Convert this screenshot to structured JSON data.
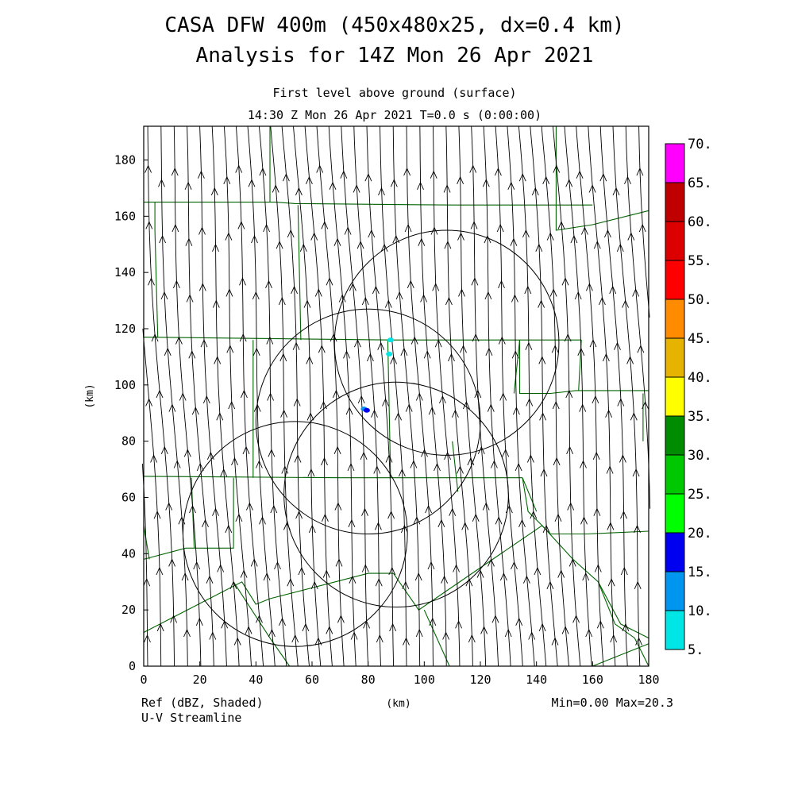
{
  "header": {
    "title_line1": "CASA DFW 400m (450x480x25, dx=0.4 km)",
    "title_line2": "Analysis for 14Z Mon 26 Apr 2021",
    "subtitle_line1": "First level above ground (surface)",
    "subtitle_line2": "14:30 Z Mon 26 Apr 2021    T=0.0 s (0:00:00)"
  },
  "footer": {
    "field_label": "Ref (dBZ, Shaded)",
    "overlay_label": "U-V Streamline",
    "stats": "Min=0.00 Max=20.3"
  },
  "chart_data": {
    "type": "heatmap",
    "field": "Ref (dBZ, Shaded)",
    "overlay": "U-V Streamline",
    "xlabel": "(km)",
    "ylabel": "(km)",
    "xlim": [
      0,
      180
    ],
    "ylim": [
      0,
      192
    ],
    "x_ticks": [
      0,
      20,
      40,
      60,
      80,
      100,
      120,
      140,
      160,
      180
    ],
    "y_ticks": [
      0,
      20,
      40,
      60,
      80,
      100,
      120,
      140,
      160,
      180
    ],
    "min": 0.0,
    "max": 20.3,
    "colorbar": {
      "levels": [
        "5.",
        "10.",
        "15.",
        "20.",
        "25.",
        "30.",
        "35.",
        "40.",
        "45.",
        "50.",
        "55.",
        "60.",
        "65.",
        "70."
      ],
      "colors": [
        "#00e6e6",
        "#0096f0",
        "#0000f0",
        "#00ff00",
        "#00c800",
        "#008c00",
        "#ffff00",
        "#e6b400",
        "#ff8c00",
        "#ff0000",
        "#dc0000",
        "#c00000",
        "#ff00ff"
      ]
    },
    "reflectivity_cells": [
      {
        "x": 78.5,
        "y": 91.5,
        "dbz": 10
      },
      {
        "x": 79.5,
        "y": 91.0,
        "dbz": 15
      },
      {
        "x": 88.0,
        "y": 116.0,
        "dbz": 5
      },
      {
        "x": 87.5,
        "y": 111.0,
        "dbz": 5
      }
    ],
    "radar_range_rings": [
      {
        "cx": 108,
        "cy": 115,
        "r": 40
      },
      {
        "cx": 80,
        "cy": 87,
        "r": 40
      },
      {
        "cx": 90,
        "cy": 61,
        "r": 40
      },
      {
        "cx": 54,
        "cy": 47,
        "r": 40
      }
    ],
    "wind_direction": "southerly (flow toward north)",
    "boundary_color": "#006400",
    "streamline_color": "#000000"
  }
}
